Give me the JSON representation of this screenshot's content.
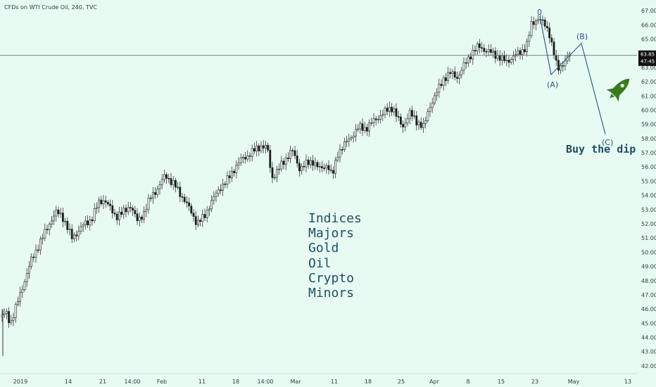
{
  "chart_data": {
    "type": "candlestick",
    "title": "CFDs on WTI Crude Oil, 240, TVC",
    "ylim": [
      41.5,
      67.5
    ],
    "y_ticks": [
      "42.00",
      "43.00",
      "44.00",
      "45.00",
      "46.00",
      "47.00",
      "48.00",
      "49.00",
      "50.00",
      "51.00",
      "52.00",
      "53.00",
      "54.00",
      "55.00",
      "56.00",
      "57.00",
      "58.00",
      "59.00",
      "60.00",
      "61.00",
      "62.00",
      "63.00",
      "64.00",
      "65.00",
      "66.00",
      "67.00"
    ],
    "x_ticks": [
      "2019",
      "14",
      "21",
      "14:00",
      "Feb",
      "11",
      "18",
      "14:00",
      "Mar",
      "11",
      "18",
      "25",
      "Apr",
      "8",
      "15",
      "23",
      "May",
      "13"
    ],
    "price_line": {
      "value": 63.85,
      "label": "63.85",
      "countdown": "47:45"
    },
    "price_path": [
      [
        0,
        45.2
      ],
      [
        8,
        45.8
      ],
      [
        15,
        45.0
      ],
      [
        25,
        46.5
      ],
      [
        35,
        48.0
      ],
      [
        45,
        49.5
      ],
      [
        55,
        50.5
      ],
      [
        65,
        51.5
      ],
      [
        72,
        52.2
      ],
      [
        80,
        52.8
      ],
      [
        88,
        52.6
      ],
      [
        95,
        51.8
      ],
      [
        102,
        51.0
      ],
      [
        110,
        51.4
      ],
      [
        120,
        52.0
      ],
      [
        130,
        52.3
      ],
      [
        140,
        53.5
      ],
      [
        148,
        53.7
      ],
      [
        155,
        53.2
      ],
      [
        165,
        52.5
      ],
      [
        175,
        52.8
      ],
      [
        185,
        53.3
      ],
      [
        195,
        52.2
      ],
      [
        205,
        52.8
      ],
      [
        215,
        54.0
      ],
      [
        225,
        54.5
      ],
      [
        235,
        55.5
      ],
      [
        242,
        55.0
      ],
      [
        250,
        54.6
      ],
      [
        260,
        53.8
      ],
      [
        270,
        53.0
      ],
      [
        280,
        52.0
      ],
      [
        290,
        52.5
      ],
      [
        300,
        53.5
      ],
      [
        312,
        54.5
      ],
      [
        322,
        55.0
      ],
      [
        332,
        55.8
      ],
      [
        342,
        56.5
      ],
      [
        352,
        56.8
      ],
      [
        362,
        57.2
      ],
      [
        372,
        57.5
      ],
      [
        380,
        57.3
      ],
      [
        386,
        55.2
      ],
      [
        395,
        55.8
      ],
      [
        405,
        56.5
      ],
      [
        415,
        57.2
      ],
      [
        425,
        55.9
      ],
      [
        435,
        56.2
      ],
      [
        445,
        56.4
      ],
      [
        455,
        55.8
      ],
      [
        465,
        56.2
      ],
      [
        472,
        55.3
      ],
      [
        480,
        57.0
      ],
      [
        490,
        57.6
      ],
      [
        500,
        58.2
      ],
      [
        510,
        58.8
      ],
      [
        520,
        58.7
      ],
      [
        530,
        59.2
      ],
      [
        540,
        59.6
      ],
      [
        550,
        60.0
      ],
      [
        558,
        60.2
      ],
      [
        565,
        59.4
      ],
      [
        572,
        58.8
      ],
      [
        582,
        59.8
      ],
      [
        592,
        59.2
      ],
      [
        602,
        58.8
      ],
      [
        610,
        60.2
      ],
      [
        620,
        61.2
      ],
      [
        630,
        62.2
      ],
      [
        640,
        62.6
      ],
      [
        650,
        62.3
      ],
      [
        660,
        63.2
      ],
      [
        670,
        64.0
      ],
      [
        680,
        64.5
      ],
      [
        690,
        64.2
      ],
      [
        700,
        64.0
      ],
      [
        710,
        63.7
      ],
      [
        720,
        63.4
      ],
      [
        730,
        63.8
      ],
      [
        740,
        64.1
      ],
      [
        748,
        64.5
      ],
      [
        755,
        66.0
      ],
      [
        765,
        66.5
      ],
      [
        772,
        66.1
      ],
      [
        780,
        65.5
      ],
      [
        786,
        64.2
      ],
      [
        792,
        62.8
      ],
      [
        800,
        63.3
      ],
      [
        808,
        63.8
      ],
      [
        812,
        64.1
      ]
    ],
    "annotations": {
      "wave_points": {
        "start": [
          767,
          66.6
        ],
        "A": [
          783,
          62.5
        ],
        "B": [
          826,
          64.7
        ],
        "C": [
          860,
          58.3
        ]
      },
      "wave_labels": [
        "(A)",
        "(B)",
        "(C)"
      ],
      "top_label": "0",
      "buy_text": "Buy the dip",
      "menu_list": [
        "Indices",
        "Majors",
        "Gold",
        "Oil",
        "Crypto",
        "Minors"
      ],
      "icon": "rocket-icon"
    },
    "colors": {
      "background": "#e8fbf3",
      "candle": "#1c1c1c",
      "wave": "#2b4f86",
      "price_line": "#6f6f6f",
      "price_tag": "#111111",
      "rocket": "#3a7a1e",
      "text_mono": "#1f4d63"
    }
  }
}
